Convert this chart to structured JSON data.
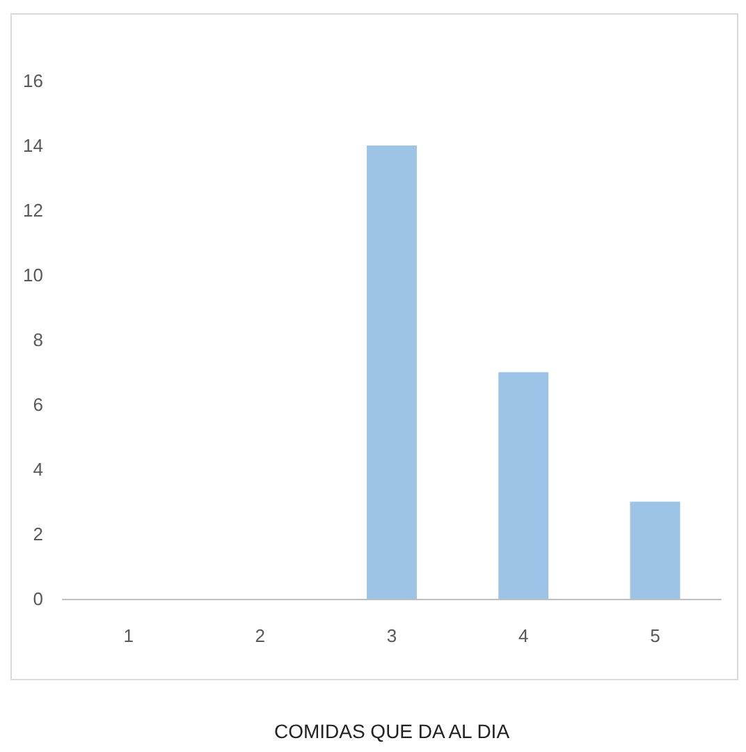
{
  "chart_data": {
    "type": "bar",
    "xlabel": "COMIDAS QUE DA AL DIA",
    "categories": [
      "1",
      "2",
      "3",
      "4",
      "5"
    ],
    "series": [
      {
        "color": "#9dc3e6",
        "values": [
          0,
          0,
          14,
          7,
          3
        ]
      }
    ],
    "ylim": [
      0,
      16
    ],
    "yticks": [
      0,
      2,
      4,
      6,
      8,
      10,
      12,
      14,
      16
    ],
    "grid": false
  }
}
